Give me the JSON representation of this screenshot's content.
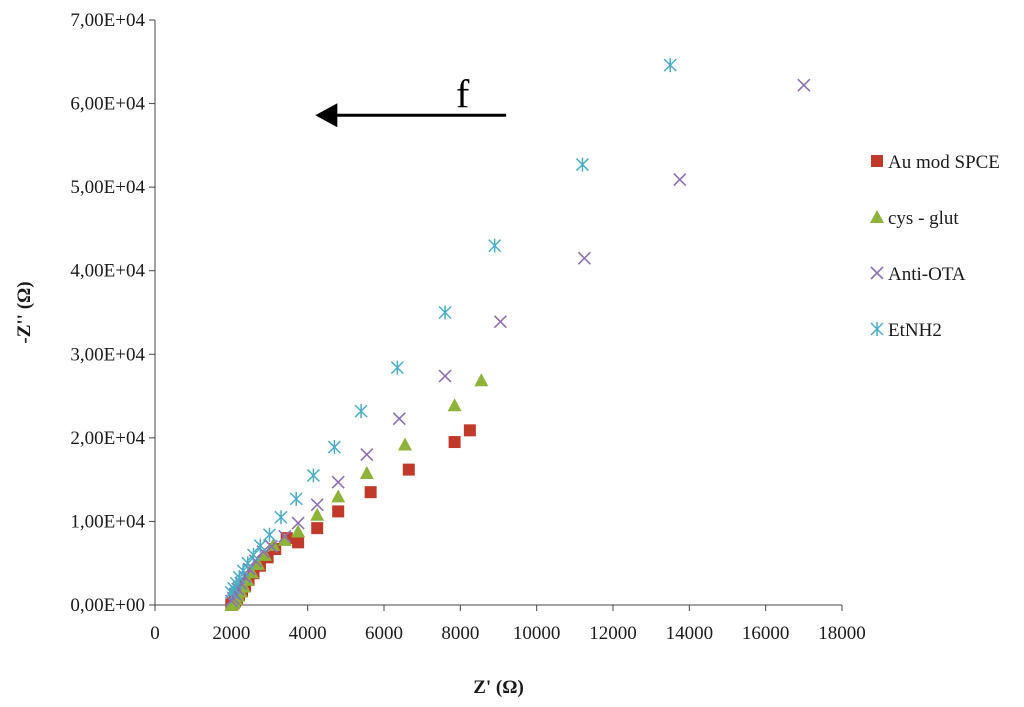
{
  "chart_data": {
    "type": "scatter",
    "title": "",
    "xlabel": "Z' (Ω)",
    "ylabel": "-Z'' (Ω)",
    "xlim": [
      0,
      18000
    ],
    "ylim": [
      0,
      70000
    ],
    "x_ticks": [
      0,
      2000,
      4000,
      6000,
      8000,
      10000,
      12000,
      14000,
      16000,
      18000
    ],
    "x_tick_labels": [
      "0",
      "2000",
      "4000",
      "6000",
      "8000",
      "10000",
      "12000",
      "14000",
      "16000",
      "18000"
    ],
    "y_ticks": [
      0,
      10000,
      20000,
      30000,
      40000,
      50000,
      60000,
      70000
    ],
    "y_tick_labels": [
      "0,00E+00",
      "1,00E+04",
      "2,00E+04",
      "3,00E+04",
      "4,00E+04",
      "5,00E+04",
      "6,00E+04",
      "7,00E+04"
    ],
    "grid": false,
    "legend_position": "right",
    "annotation": {
      "text": "f",
      "arrow": {
        "from": [
          9200,
          58600
        ],
        "to": [
          4200,
          58600
        ]
      }
    },
    "series": [
      {
        "name": "Au mod SPCE",
        "marker": "square",
        "color": "#c0392b",
        "points": [
          [
            2000,
            0
          ],
          [
            2030,
            100
          ],
          [
            2060,
            250
          ],
          [
            2100,
            500
          ],
          [
            2150,
            800
          ],
          [
            2200,
            1200
          ],
          [
            2280,
            1700
          ],
          [
            2360,
            2300
          ],
          [
            2450,
            3000
          ],
          [
            2580,
            3800
          ],
          [
            2750,
            4700
          ],
          [
            2950,
            5700
          ],
          [
            3150,
            6700
          ],
          [
            3450,
            8000
          ],
          [
            3750,
            7500
          ],
          [
            4250,
            9200
          ],
          [
            4800,
            11200
          ],
          [
            5650,
            13500
          ],
          [
            6650,
            16200
          ],
          [
            7850,
            19500
          ],
          [
            8250,
            20900
          ]
        ]
      },
      {
        "name": "cys - glut",
        "marker": "triangle",
        "color": "#8db33a",
        "points": [
          [
            2000,
            0
          ],
          [
            2030,
            150
          ],
          [
            2070,
            400
          ],
          [
            2120,
            700
          ],
          [
            2180,
            1100
          ],
          [
            2250,
            1600
          ],
          [
            2330,
            2200
          ],
          [
            2420,
            3000
          ],
          [
            2540,
            3900
          ],
          [
            2700,
            4900
          ],
          [
            2880,
            6000
          ],
          [
            3100,
            7200
          ],
          [
            3400,
            7800
          ],
          [
            3750,
            8800
          ],
          [
            4250,
            10800
          ],
          [
            4800,
            13000
          ],
          [
            5550,
            15800
          ],
          [
            6550,
            19200
          ],
          [
            7850,
            23900
          ],
          [
            8550,
            26900
          ]
        ]
      },
      {
        "name": "Anti-OTA",
        "marker": "x",
        "color": "#8e6fb0",
        "points": [
          [
            2000,
            500
          ],
          [
            2050,
            800
          ],
          [
            2100,
            1300
          ],
          [
            2170,
            1900
          ],
          [
            2250,
            2600
          ],
          [
            2350,
            3400
          ],
          [
            2470,
            4300
          ],
          [
            2630,
            5300
          ],
          [
            2830,
            6400
          ],
          [
            3050,
            7000
          ],
          [
            3400,
            8200
          ],
          [
            3750,
            9800
          ],
          [
            4250,
            12000
          ],
          [
            4800,
            14700
          ],
          [
            5550,
            18000
          ],
          [
            6400,
            22300
          ],
          [
            7600,
            27400
          ],
          [
            9050,
            33900
          ],
          [
            11250,
            41500
          ],
          [
            13750,
            50900
          ],
          [
            17000,
            62200
          ]
        ]
      },
      {
        "name": "EtNH2",
        "marker": "asterisk",
        "color": "#4bacc6",
        "points": [
          [
            2000,
            1500
          ],
          [
            2060,
            2000
          ],
          [
            2130,
            2600
          ],
          [
            2210,
            3300
          ],
          [
            2310,
            4100
          ],
          [
            2430,
            5000
          ],
          [
            2580,
            6000
          ],
          [
            2760,
            7100
          ],
          [
            3000,
            8400
          ],
          [
            3300,
            10500
          ],
          [
            3700,
            12700
          ],
          [
            4150,
            15500
          ],
          [
            4700,
            18900
          ],
          [
            5400,
            23200
          ],
          [
            6350,
            28400
          ],
          [
            7600,
            35000
          ],
          [
            8900,
            43000
          ],
          [
            11200,
            52700
          ],
          [
            13500,
            64600
          ]
        ]
      }
    ]
  }
}
